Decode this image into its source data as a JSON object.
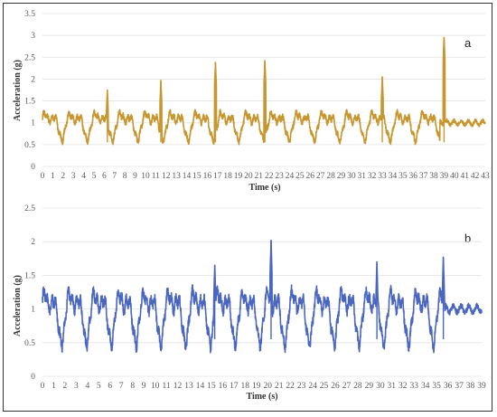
{
  "chart_data": [
    {
      "type": "line",
      "panel_label": "a",
      "xlabel": "Time (s)",
      "ylabel": "Acceleration (g)",
      "xlim": [
        0,
        43
      ],
      "ylim": [
        0,
        3.5
      ],
      "x_ticks": [
        0,
        1,
        2,
        3,
        4,
        5,
        6,
        7,
        8,
        9,
        10,
        11,
        12,
        13,
        14,
        15,
        16,
        17,
        18,
        19,
        20,
        21,
        22,
        23,
        24,
        25,
        26,
        27,
        28,
        29,
        30,
        31,
        32,
        33,
        34,
        35,
        36,
        37,
        38,
        39,
        40,
        41,
        42,
        43
      ],
      "y_ticks": [
        "0",
        "0.5",
        "1",
        "1.5",
        "2",
        "2.5",
        "3",
        "3.5"
      ],
      "grid": true,
      "line_color": "#C8962E",
      "peaks": [
        [
          6.3,
          1.75
        ],
        [
          11.5,
          1.97
        ],
        [
          16.8,
          2.38
        ],
        [
          21.6,
          2.42
        ],
        [
          33.0,
          2.05
        ],
        [
          39.0,
          2.95
        ]
      ],
      "cycle_period_s": 2.45,
      "steady_end_s": 38.6
    },
    {
      "type": "line",
      "panel_label": "b",
      "xlabel": "Time (s)",
      "ylabel": "Acceleration (g)",
      "xlim": [
        0,
        39
      ],
      "ylim": [
        0,
        2.5
      ],
      "x_ticks": [
        0,
        1,
        2,
        3,
        4,
        5,
        6,
        7,
        8,
        9,
        10,
        11,
        12,
        13,
        14,
        15,
        16,
        17,
        18,
        19,
        20,
        21,
        22,
        23,
        24,
        25,
        26,
        27,
        28,
        29,
        30,
        31,
        32,
        33,
        34,
        35,
        36,
        37,
        38,
        39
      ],
      "y_ticks": [
        "0",
        "0.5",
        "1",
        "1.5",
        "2",
        "2.5"
      ],
      "grid": true,
      "line_color": "#4A66C0",
      "peaks": [
        [
          15.3,
          1.65
        ],
        [
          20.3,
          2.02
        ],
        [
          29.7,
          1.7
        ],
        [
          35.6,
          1.77
        ]
      ],
      "cycle_period_s": 2.2,
      "steady_end_s": 35.8
    }
  ]
}
